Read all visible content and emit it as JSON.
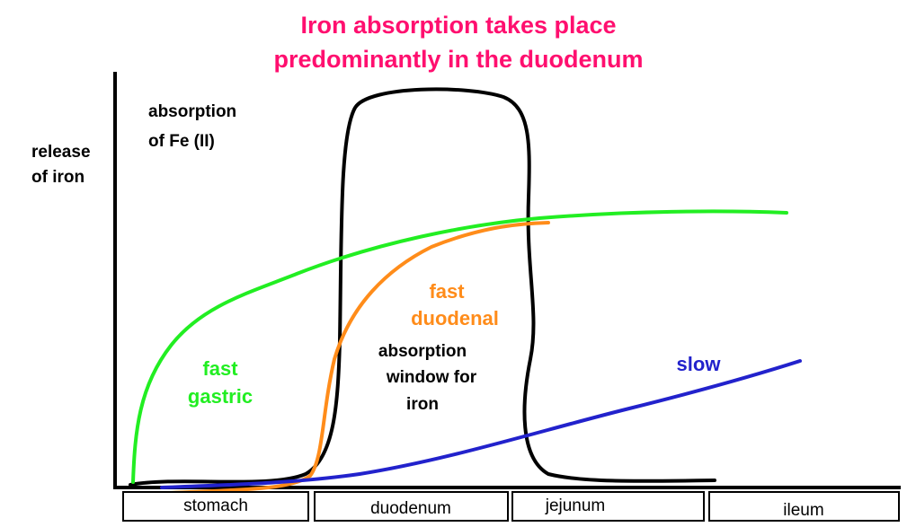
{
  "title": [
    "Iron absorption takes place",
    "predominantly in the duodenum"
  ],
  "y_axis_label": [
    "release",
    "of iron"
  ],
  "annotations": {
    "absorption": [
      "absorption",
      "of Fe (II)"
    ],
    "window": [
      "absorption",
      "window for",
      "iron"
    ],
    "fast_gastric": [
      "fast",
      "gastric"
    ],
    "fast_duodenal": [
      "fast",
      "duodenal"
    ],
    "slow": "slow"
  },
  "segments": [
    "stomach",
    "duodenum",
    "jejunum",
    "ileum"
  ]
}
